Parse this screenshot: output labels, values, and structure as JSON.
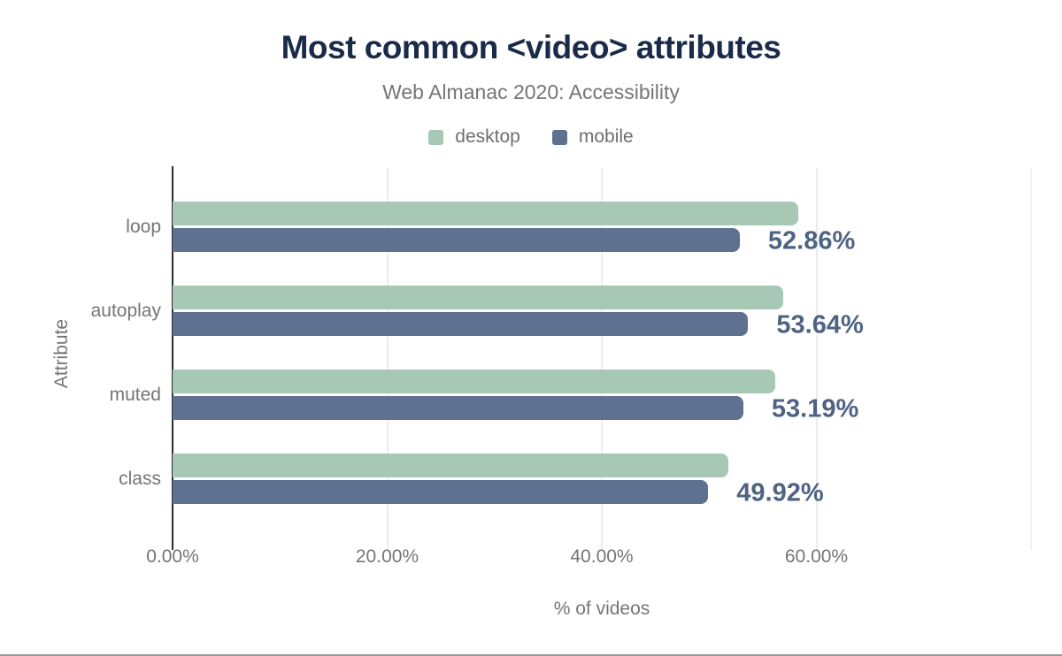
{
  "page": {
    "bottom_border_color": "#9a9a9a",
    "background": "#ffffff"
  },
  "chart_data": {
    "type": "bar",
    "orientation": "horizontal",
    "title": "Most common <video> attributes",
    "subtitle": "Web Almanac 2020: Accessibility",
    "categories": [
      "loop",
      "autoplay",
      "muted",
      "class"
    ],
    "series": [
      {
        "name": "desktop",
        "color": "#a6c8b5",
        "values": [
          58.35,
          56.94,
          56.19,
          51.82
        ]
      },
      {
        "name": "mobile",
        "color": "#5e7191",
        "values": [
          52.86,
          53.64,
          53.19,
          49.92
        ],
        "data_labels": [
          "52.86%",
          "53.64%",
          "53.19%",
          "49.92%"
        ]
      }
    ],
    "xlabel": "% of videos",
    "ylabel": "Attribute",
    "xlim": [
      0,
      80
    ],
    "x_tick_values": [
      0,
      20,
      40,
      60
    ],
    "x_tick_labels": [
      "0.00%",
      "20.00%",
      "40.00%",
      "60.00%"
    ],
    "grid_tick_values": [
      20,
      40,
      60,
      80
    ],
    "grid": true,
    "legend_position": "top",
    "colors": {
      "title": "#1a2b49",
      "subtitle": "#757575",
      "axis_line": "#2d2d2d",
      "gridline": "#ececec",
      "tick_text": "#757575",
      "data_label": "#4e6383",
      "legend_text": "#6e6e6e"
    }
  }
}
